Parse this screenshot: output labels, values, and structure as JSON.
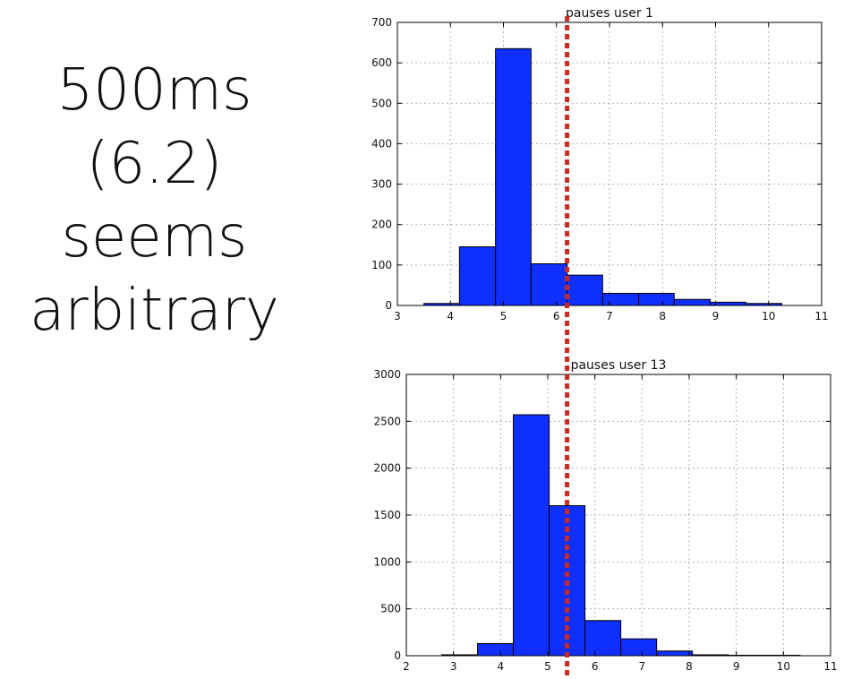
{
  "caption": {
    "lines": [
      "500ms",
      "(6.2)",
      "seems",
      "arbitrary"
    ]
  },
  "colors": {
    "bar_fill": "#0f2fff",
    "bar_stroke": "#000000",
    "marker": "#cc2a1e",
    "grid": "#b0b0b0"
  },
  "chart_data": [
    {
      "type": "bar",
      "title": "pauses user 1",
      "xlabel": "",
      "ylabel": "",
      "xlim": [
        3,
        11
      ],
      "ylim": [
        0,
        700
      ],
      "xticks": [
        3,
        4,
        5,
        6,
        7,
        8,
        9,
        10,
        11
      ],
      "yticks": [
        0,
        100,
        200,
        300,
        400,
        500,
        600,
        700
      ],
      "grid": true,
      "bin_edges": [
        3.5,
        4.17,
        4.85,
        5.52,
        6.2,
        6.87,
        7.55,
        8.22,
        8.9,
        9.57,
        10.25
      ],
      "values": [
        5,
        145,
        635,
        103,
        75,
        30,
        30,
        15,
        8,
        5
      ]
    },
    {
      "type": "bar",
      "title": "pauses user 13",
      "xlabel": "",
      "ylabel": "",
      "xlim": [
        2,
        11
      ],
      "ylim": [
        0,
        3000
      ],
      "xticks": [
        2,
        3,
        4,
        5,
        6,
        7,
        8,
        9,
        10,
        11
      ],
      "yticks": [
        0,
        500,
        1000,
        1500,
        2000,
        2500,
        3000
      ],
      "grid": true,
      "bin_edges": [
        2.75,
        3.51,
        4.27,
        5.03,
        5.79,
        6.55,
        7.31,
        8.07,
        8.83,
        9.59,
        10.35
      ],
      "values": [
        10,
        130,
        2570,
        1600,
        375,
        180,
        50,
        10,
        5,
        5
      ]
    }
  ],
  "marker": {
    "value": 6.2,
    "style": "dotted"
  }
}
